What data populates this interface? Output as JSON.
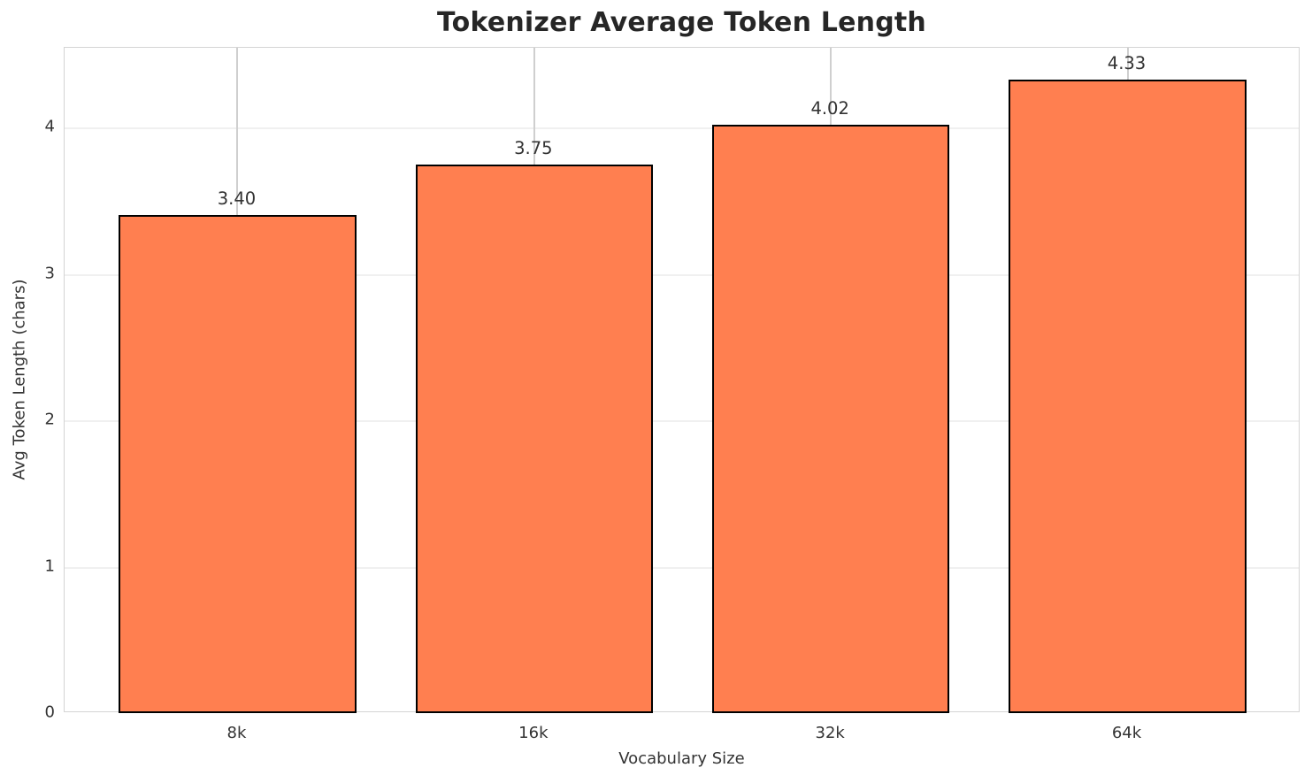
{
  "figure": {
    "background_color": "#ffffff"
  },
  "chart_data": {
    "type": "bar",
    "title": "Tokenizer Average Token Length",
    "xlabel": "Vocabulary Size",
    "ylabel": "Avg Token Length (chars)",
    "categories": [
      "8k",
      "16k",
      "32k",
      "64k"
    ],
    "values": [
      3.4,
      3.75,
      4.02,
      4.33
    ],
    "value_labels": [
      "3.40",
      "3.75",
      "4.02",
      "4.33"
    ],
    "yticks": [
      0,
      1,
      2,
      3,
      4
    ],
    "ylim": [
      0,
      4.545
    ],
    "bar_width_fraction": 0.8,
    "grid": "on",
    "legend": "none",
    "colors": {
      "bar_fill": "#FF7F50",
      "bar_edge": "#000000",
      "h_gridline": "#f0f0f0",
      "v_gridline": "#cfcfcf",
      "spine": "#d4d4d4",
      "text": "#333333",
      "title_text": "#262626"
    }
  }
}
